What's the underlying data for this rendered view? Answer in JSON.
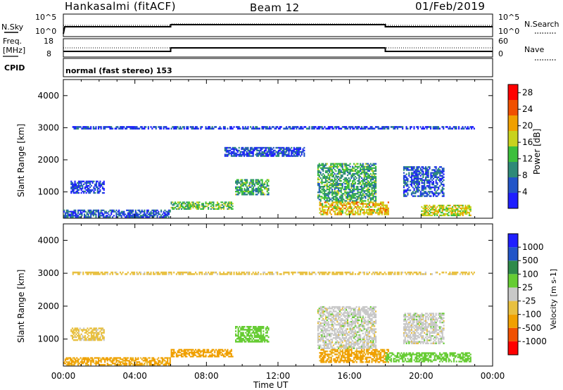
{
  "header": {
    "station": "Hankasalmi (fitACF)",
    "beam": "Beam 12",
    "date": "01/Feb/2019"
  },
  "panel_nsky": {
    "left_label": "N.Sky",
    "left_top_tick": "10^5",
    "left_bottom_tick": "10^0",
    "right_label": "N.Search",
    "right_top_tick": "10^5",
    "right_bottom_tick": "10^0"
  },
  "panel_freq": {
    "left_label_line1": "Freq.",
    "left_label_line2": "[MHz]",
    "left_top_tick": "18",
    "left_bottom_tick": "8",
    "right_label": "Nave",
    "right_top_tick": "60",
    "right_bottom_tick": "0"
  },
  "cpid": {
    "label": "CPID",
    "text": "normal (fast stereo) 153"
  },
  "colors": {
    "power": [
      "#1f1fff",
      "#2255c8",
      "#2e8a78",
      "#3cbf3c",
      "#c8d21e",
      "#f0a000",
      "#f05000",
      "#ff0000"
    ],
    "velocity": [
      "#ff0000",
      "#f05000",
      "#f0a000",
      "#e8c040",
      "#c8c8c8",
      "#66cc33",
      "#2e8a4a",
      "#2255c8",
      "#1f1fff"
    ]
  },
  "chart_data": [
    {
      "type": "heatmap",
      "title": "Power",
      "ylabel": "Slant Range [km]",
      "ylim": [
        180,
        4500
      ],
      "yticks": [
        "4000",
        "3000",
        "2000",
        "1000"
      ],
      "xlabel": "",
      "xlim": [
        0,
        24
      ],
      "colorbar": {
        "label": "Power [dB]",
        "ticks": [
          "28",
          "24",
          "20",
          "16",
          "12",
          "8",
          "4"
        ],
        "range": [
          0,
          30
        ]
      },
      "regions": [
        {
          "x": [
            0.4,
            2.3
          ],
          "y": [
            950,
            1350
          ],
          "value": 4
        },
        {
          "x": [
            0.0,
            6.0
          ],
          "y": [
            200,
            450
          ],
          "value": 6
        },
        {
          "x": [
            6.0,
            9.5
          ],
          "y": [
            450,
            700
          ],
          "value": 14
        },
        {
          "x": [
            9.6,
            11.5
          ],
          "y": [
            900,
            1400
          ],
          "value": 12
        },
        {
          "x": [
            9.0,
            13.5
          ],
          "y": [
            2100,
            2400
          ],
          "value": 5
        },
        {
          "x": [
            14.2,
            17.5
          ],
          "y": [
            700,
            1900
          ],
          "value": 12
        },
        {
          "x": [
            14.3,
            18.2
          ],
          "y": [
            280,
            700
          ],
          "value": 20
        },
        {
          "x": [
            19.0,
            21.3
          ],
          "y": [
            850,
            1800
          ],
          "value": 6
        },
        {
          "x": [
            20.0,
            22.8
          ],
          "y": [
            250,
            600
          ],
          "value": 18
        },
        {
          "x": [
            0.5,
            23.0
          ],
          "y": [
            2950,
            3050
          ],
          "value": 4
        }
      ]
    },
    {
      "type": "heatmap",
      "title": "Velocity",
      "ylabel": "Slant Range [km]",
      "ylim": [
        180,
        4500
      ],
      "yticks": [
        "4000",
        "3000",
        "2000",
        "1000"
      ],
      "xlabel": "Time UT",
      "xticks": [
        "00:00",
        "04:00",
        "08:00",
        "12:00",
        "16:00",
        "20:00",
        "00:00"
      ],
      "xlim": [
        0,
        24
      ],
      "colorbar": {
        "label": "Velocity [m s-1]",
        "ticks": [
          "1000",
          "500",
          "100",
          "25",
          "-25",
          "-100",
          "-500",
          "-1000"
        ]
      },
      "regions": [
        {
          "x": [
            0.4,
            2.3
          ],
          "y": [
            950,
            1350
          ],
          "value": -50
        },
        {
          "x": [
            0.0,
            6.0
          ],
          "y": [
            200,
            450
          ],
          "value": -150
        },
        {
          "x": [
            6.0,
            9.5
          ],
          "y": [
            450,
            700
          ],
          "value": -300
        },
        {
          "x": [
            9.6,
            11.5
          ],
          "y": [
            900,
            1400
          ],
          "value": 60
        },
        {
          "x": [
            14.2,
            17.5
          ],
          "y": [
            700,
            2000
          ],
          "value": 0
        },
        {
          "x": [
            14.3,
            18.2
          ],
          "y": [
            280,
            700
          ],
          "value": -150
        },
        {
          "x": [
            18.0,
            22.8
          ],
          "y": [
            300,
            600
          ],
          "value": 60
        },
        {
          "x": [
            19.0,
            21.3
          ],
          "y": [
            850,
            1800
          ],
          "value": 0
        },
        {
          "x": [
            0.5,
            23.0
          ],
          "y": [
            2950,
            3050
          ],
          "value": -50
        }
      ]
    }
  ]
}
